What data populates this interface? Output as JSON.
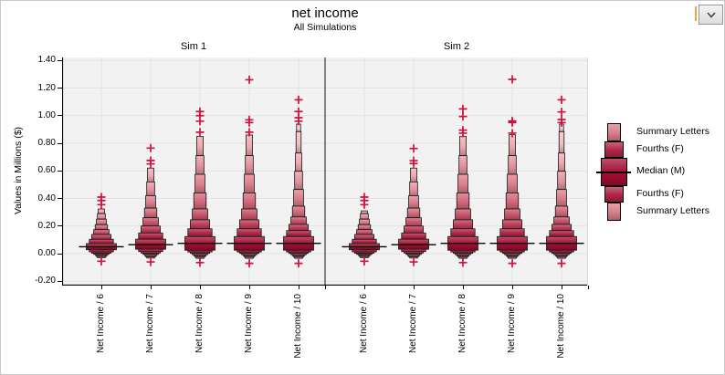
{
  "header": {
    "title": "net income",
    "subtitle": "All Simulations"
  },
  "controls": {
    "dropdown_icon": "chevron-down"
  },
  "chart_data": {
    "type": "letter_value_boxplot",
    "title": "net income",
    "subtitle": "All Simulations",
    "ylabel": "Values in Millions ($)",
    "ylim": [
      -0.23,
      1.42
    ],
    "yticks": [
      1.4,
      1.2,
      1.0,
      0.8,
      0.6,
      0.4,
      0.2,
      0.0,
      -0.2
    ],
    "ytick_labels": [
      "1.40",
      "1.20",
      "1.00",
      "0.80",
      "0.60",
      "0.40",
      "0.20",
      "0.00",
      "-0.20"
    ],
    "grid": true,
    "legend": [
      "Summary Letters",
      "Fourths (F)",
      "Median (M)",
      "Fourths (F)",
      "Summary Letters"
    ],
    "colors": {
      "level_colors": [
        "#A30D33",
        "#B02546",
        "#BC3C58",
        "#C75269",
        "#D1677A",
        "#DB7D8B",
        "#E4939E",
        "#EDA9B0",
        "#F4BFC4",
        "#F8D2D6"
      ],
      "outlier": "#D1113B",
      "plot_bg": "#F2F2F2",
      "gridline": "#E1E1E1",
      "axis": "#000000",
      "divider": "#3A3A3A",
      "focus_bar": "#E9A33F"
    },
    "panels": [
      {
        "label": "Sim 1",
        "groups": [
          {
            "label": "Net Income / 6",
            "median": 0.05,
            "upper": [
              0.073,
              0.104,
              0.139,
              0.174,
              0.21,
              0.25,
              0.29,
              0.324
            ],
            "lower": [
              0.028,
              0.013,
              0.003,
              -0.005,
              -0.013,
              -0.021,
              -0.029
            ],
            "upper_outliers": [
              0.355,
              0.385,
              0.41
            ],
            "lower_outliers": [
              -0.055
            ]
          },
          {
            "label": "Net Income / 7",
            "median": 0.065,
            "upper": [
              0.105,
              0.15,
              0.2,
              0.26,
              0.33,
              0.42,
              0.52,
              0.62
            ],
            "lower": [
              0.032,
              0.015,
              0.004,
              -0.005,
              -0.014,
              -0.023,
              -0.032
            ],
            "upper_outliers": [
              0.65,
              0.675,
              0.765
            ],
            "lower_outliers": [
              -0.06
            ]
          },
          {
            "label": "Net Income / 8",
            "median": 0.075,
            "upper": [
              0.124,
              0.18,
              0.245,
              0.324,
              0.44,
              0.575,
              0.71,
              0.85
            ],
            "lower": [
              0.025,
              0.012,
              0.002,
              -0.007,
              -0.016,
              -0.025,
              -0.034
            ],
            "upper_outliers": [
              0.88,
              0.96,
              1.0,
              1.03
            ],
            "lower_outliers": [
              -0.065
            ]
          },
          {
            "label": "Net Income / 9",
            "median": 0.075,
            "upper": [
              0.124,
              0.18,
              0.245,
              0.324,
              0.44,
              0.575,
              0.71,
              0.86
            ],
            "lower": [
              0.025,
              0.012,
              0.002,
              -0.007,
              -0.016,
              -0.025,
              -0.034
            ],
            "upper_outliers": [
              0.88,
              0.95,
              0.97,
              1.26
            ],
            "lower_outliers": [
              -0.07
            ]
          },
          {
            "label": "Net Income / 10",
            "median": 0.075,
            "upper": [
              0.124,
              0.167,
              0.212,
              0.266,
              0.344,
              0.465,
              0.597,
              0.729,
              0.884,
              0.939
            ],
            "lower": [
              0.025,
              0.012,
              0.002,
              -0.007,
              -0.016,
              -0.025,
              -0.034
            ],
            "upper_outliers": [
              0.96,
              0.985,
              1.03,
              1.115
            ],
            "lower_outliers": [
              -0.07
            ]
          }
        ]
      },
      {
        "label": "Sim 2",
        "groups": [
          {
            "label": "Net Income / 6",
            "median": 0.05,
            "upper": [
              0.073,
              0.104,
              0.139,
              0.174,
              0.21,
              0.25,
              0.29,
              0.31
            ],
            "lower": [
              0.028,
              0.013,
              0.003,
              -0.005,
              -0.013,
              -0.021,
              -0.029
            ],
            "upper_outliers": [
              0.355,
              0.385,
              0.41
            ],
            "lower_outliers": [
              -0.055
            ]
          },
          {
            "label": "Net Income / 7",
            "median": 0.065,
            "upper": [
              0.105,
              0.15,
              0.2,
              0.26,
              0.33,
              0.42,
              0.52,
              0.62
            ],
            "lower": [
              0.032,
              0.015,
              0.004,
              -0.005,
              -0.014,
              -0.023,
              -0.032
            ],
            "upper_outliers": [
              0.653,
              0.674,
              0.762
            ],
            "lower_outliers": [
              -0.06
            ]
          },
          {
            "label": "Net Income / 8",
            "median": 0.075,
            "upper": [
              0.124,
              0.18,
              0.245,
              0.324,
              0.44,
              0.575,
              0.71,
              0.851
            ],
            "lower": [
              0.025,
              0.012,
              0.002,
              -0.007,
              -0.016,
              -0.025,
              -0.034
            ],
            "upper_outliers": [
              0.873,
              0.895,
              0.994,
              1.049
            ],
            "lower_outliers": [
              -0.065
            ]
          },
          {
            "label": "Net Income / 9",
            "median": 0.075,
            "upper": [
              0.124,
              0.18,
              0.245,
              0.324,
              0.44,
              0.575,
              0.71,
              0.862
            ],
            "lower": [
              0.025,
              0.012,
              0.002,
              -0.007,
              -0.016,
              -0.025,
              -0.034
            ],
            "upper_outliers": [
              0.873,
              0.95,
              0.961,
              1.263
            ],
            "lower_outliers": [
              -0.07
            ]
          },
          {
            "label": "Net Income / 10",
            "median": 0.075,
            "upper": [
              0.124,
              0.167,
              0.212,
              0.266,
              0.344,
              0.465,
              0.597,
              0.729,
              0.884,
              0.939
            ],
            "lower": [
              0.025,
              0.012,
              0.002,
              -0.007,
              -0.016,
              -0.025,
              -0.034
            ],
            "upper_outliers": [
              0.95,
              0.972,
              1.027,
              1.115
            ],
            "lower_outliers": [
              -0.07
            ]
          }
        ]
      }
    ]
  }
}
